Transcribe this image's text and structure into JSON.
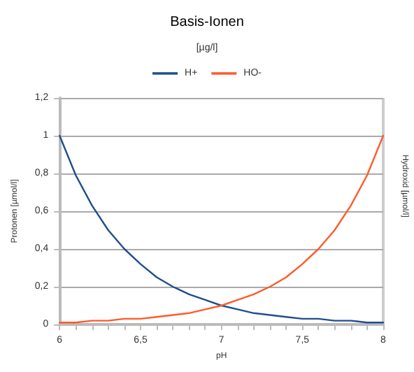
{
  "chart_data": {
    "type": "line",
    "title": "Basis-Ionen",
    "subtitle": "[µg/l]",
    "xlabel": "pH",
    "ylabel": "Protonen [µmol/l]",
    "y2label": "Hydroxid [µmol/l]",
    "x": [
      6,
      6.1,
      6.2,
      6.3,
      6.4,
      6.5,
      6.6,
      6.7,
      6.8,
      6.9,
      7,
      7.1,
      7.2,
      7.3,
      7.4,
      7.5,
      7.6,
      7.7,
      7.8,
      7.9,
      8
    ],
    "series": [
      {
        "name": "H+",
        "color": "#1f4e8c",
        "values": [
          1,
          0.79,
          0.63,
          0.5,
          0.4,
          0.32,
          0.25,
          0.2,
          0.16,
          0.13,
          0.1,
          0.08,
          0.06,
          0.05,
          0.04,
          0.03,
          0.03,
          0.02,
          0.02,
          0.01,
          0.01
        ]
      },
      {
        "name": "HO-",
        "color": "#ff5a2a",
        "values": [
          0.01,
          0.01,
          0.02,
          0.02,
          0.03,
          0.03,
          0.04,
          0.05,
          0.06,
          0.08,
          0.1,
          0.13,
          0.16,
          0.2,
          0.25,
          0.32,
          0.4,
          0.5,
          0.63,
          0.79,
          1
        ]
      }
    ],
    "xlim": [
      6,
      8
    ],
    "xticks": [
      6,
      {
        "value": 6.5,
        "label": "6,5"
      },
      7,
      {
        "value": 7.5,
        "label": "7,5"
      },
      8
    ],
    "ylim": [
      0,
      1.2
    ],
    "yticks": [
      0,
      {
        "value": 0.2,
        "label": "0,2"
      },
      {
        "value": 0.4,
        "label": "0,4"
      },
      {
        "value": 0.6,
        "label": "0,6"
      },
      {
        "value": 0.8,
        "label": "0,8"
      },
      1,
      {
        "value": 1.2,
        "label": "1,2"
      }
    ],
    "grid": "y",
    "legend": "top",
    "marker": "none",
    "line_style": "solid"
  }
}
